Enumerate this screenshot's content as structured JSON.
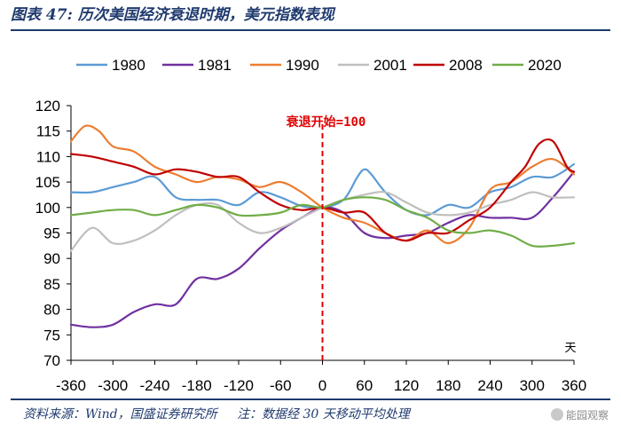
{
  "header": {
    "title": "图表 47: 历次美国经济衰退时期，美元指数表现"
  },
  "footer": {
    "source": "资料来源：Wind，国盛证券研究所",
    "note": "注：数据经 30 天移动平均处理"
  },
  "watermark": "能园观察",
  "chart_data": {
    "type": "line",
    "title": "历次美国经济衰退时期，美元指数表现",
    "xlabel": "天",
    "ylabel": "",
    "xlim": [
      -360,
      360
    ],
    "ylim": [
      70,
      120
    ],
    "xticks": [
      -360,
      -300,
      -240,
      -180,
      -120,
      -60,
      0,
      60,
      120,
      180,
      240,
      300,
      360
    ],
    "yticks": [
      70,
      75,
      80,
      85,
      90,
      95,
      100,
      105,
      110,
      115,
      120
    ],
    "annotation": {
      "text": "衰退开始=100",
      "x": 0
    },
    "legend_position": "top",
    "series": [
      {
        "name": "1980",
        "color": "#5b9bd5",
        "x": [
          -360,
          -330,
          -300,
          -270,
          -240,
          -210,
          -180,
          -150,
          -120,
          -90,
          -60,
          -30,
          0,
          30,
          50,
          60,
          70,
          90,
          120,
          150,
          180,
          210,
          240,
          270,
          300,
          330,
          360
        ],
        "y": [
          103,
          103,
          104,
          105,
          106,
          102,
          101.5,
          101.5,
          100.5,
          103,
          102,
          100.3,
          100,
          101.5,
          106,
          107.5,
          106.5,
          103,
          99.5,
          98.5,
          100.5,
          100,
          103,
          104,
          106,
          106,
          108.5
        ]
      },
      {
        "name": "1981",
        "color": "#7030a0",
        "x": [
          -360,
          -330,
          -300,
          -270,
          -240,
          -210,
          -180,
          -150,
          -120,
          -90,
          -60,
          -30,
          0,
          30,
          60,
          90,
          120,
          150,
          180,
          210,
          240,
          270,
          300,
          330,
          360
        ],
        "y": [
          77,
          76.5,
          77,
          79.5,
          81,
          81,
          86,
          86,
          88,
          92,
          95.5,
          98,
          100,
          99,
          95,
          94,
          94.5,
          95,
          97,
          98.5,
          98,
          98,
          98,
          102,
          107
        ]
      },
      {
        "name": "1990",
        "color": "#ed7d31",
        "x": [
          -360,
          -340,
          -320,
          -300,
          -270,
          -240,
          -210,
          -180,
          -150,
          -120,
          -90,
          -60,
          -30,
          0,
          30,
          60,
          90,
          120,
          150,
          180,
          210,
          240,
          270,
          300,
          330,
          360
        ],
        "y": [
          113,
          116,
          115,
          112,
          111,
          108,
          106.5,
          105,
          106,
          105.5,
          104,
          105,
          103,
          100,
          98,
          97,
          95,
          93.5,
          95.5,
          93,
          96,
          103.5,
          105,
          108,
          109.5,
          106.5
        ]
      },
      {
        "name": "2001",
        "color": "#bfbfbf",
        "x": [
          -360,
          -330,
          -300,
          -270,
          -240,
          -210,
          -180,
          -150,
          -120,
          -90,
          -60,
          -30,
          0,
          30,
          60,
          90,
          120,
          150,
          180,
          210,
          240,
          270,
          300,
          330,
          360
        ],
        "y": [
          91.5,
          96,
          93,
          93.5,
          95.5,
          98.5,
          100.5,
          100.5,
          97,
          95,
          96,
          98,
          100,
          101.5,
          102.5,
          103,
          101,
          99,
          98.5,
          99,
          100.5,
          101.5,
          103,
          102,
          102
        ]
      },
      {
        "name": "2008",
        "color": "#c00000",
        "x": [
          -360,
          -330,
          -300,
          -270,
          -240,
          -210,
          -180,
          -150,
          -120,
          -90,
          -60,
          -30,
          0,
          30,
          60,
          90,
          120,
          150,
          180,
          210,
          240,
          270,
          290,
          310,
          330,
          350,
          360
        ],
        "y": [
          110.5,
          110,
          109,
          108,
          106.5,
          107.5,
          107,
          106,
          106,
          103,
          100.5,
          99.5,
          100,
          99,
          99,
          95,
          93.5,
          95,
          95,
          97.5,
          100,
          105,
          108,
          112.5,
          113,
          108,
          107
        ]
      },
      {
        "name": "2020",
        "color": "#70ad47",
        "x": [
          -360,
          -330,
          -300,
          -270,
          -240,
          -210,
          -180,
          -150,
          -120,
          -90,
          -60,
          -30,
          0,
          30,
          60,
          90,
          120,
          150,
          180,
          210,
          240,
          270,
          300,
          330,
          360
        ],
        "y": [
          98.5,
          99,
          99.5,
          99.5,
          98.5,
          99.5,
          100.5,
          100,
          98.5,
          98.5,
          99,
          100.5,
          100,
          101.5,
          102,
          101.5,
          99.5,
          98,
          95.5,
          95,
          95.5,
          94.5,
          92.5,
          92.5,
          93
        ]
      }
    ]
  }
}
